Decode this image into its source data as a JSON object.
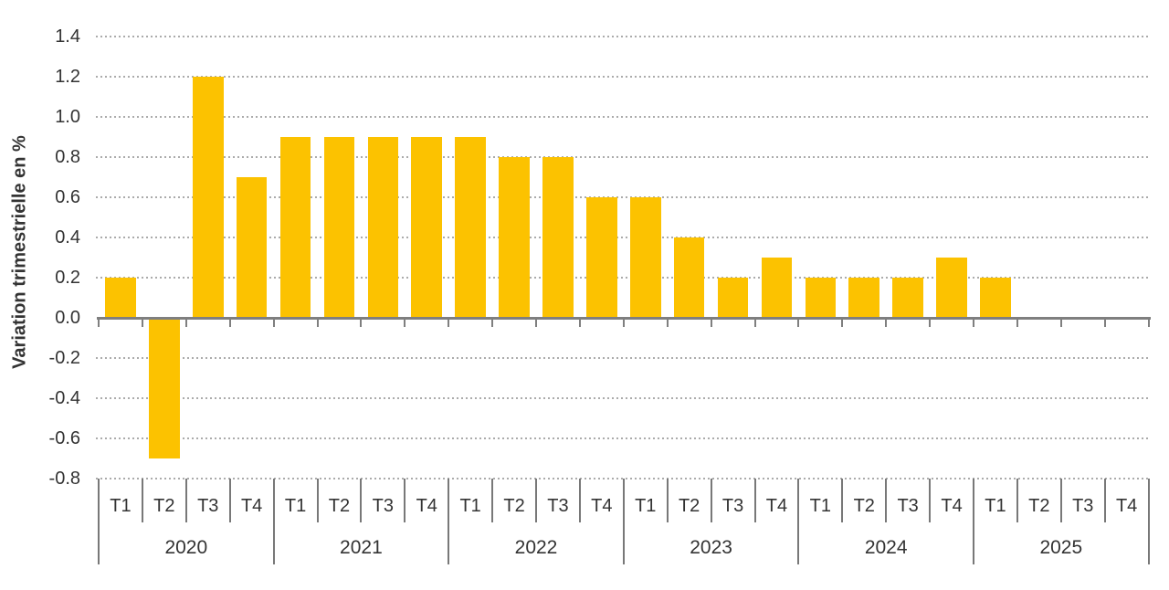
{
  "chart_data": {
    "type": "bar",
    "title": "",
    "ylabel": "Variation trimestrielle en %",
    "xlabel": "",
    "ylim": [
      -0.8,
      1.4
    ],
    "ytick_step": 0.2,
    "y_tick_labels": [
      "1.4",
      "1.2",
      "1.0",
      "0.8",
      "0.6",
      "0.4",
      "0.2",
      "0.0",
      "-0.2",
      "-0.4",
      "-0.6",
      "-0.8"
    ],
    "grid": "horizontal-dotted",
    "legend": "none",
    "quarter_labels": [
      "T1",
      "T2",
      "T3",
      "T4"
    ],
    "groups": [
      {
        "year": "2020",
        "values": [
          0.2,
          -0.7,
          1.2,
          0.7
        ]
      },
      {
        "year": "2021",
        "values": [
          0.9,
          0.9,
          0.9,
          0.9
        ]
      },
      {
        "year": "2022",
        "values": [
          0.9,
          0.8,
          0.8,
          0.6
        ]
      },
      {
        "year": "2023",
        "values": [
          0.6,
          0.4,
          0.2,
          0.3
        ]
      },
      {
        "year": "2024",
        "values": [
          0.2,
          0.2,
          0.2,
          0.3
        ]
      },
      {
        "year": "2025",
        "values": [
          0.2,
          null,
          null,
          null
        ]
      }
    ],
    "colors": {
      "bar": "#FCC200",
      "grid_dots": "#ABABAB",
      "axis": "#7F7F7F",
      "separators": "#787878",
      "text": "#333333",
      "background": "#FFFFFF"
    }
  }
}
